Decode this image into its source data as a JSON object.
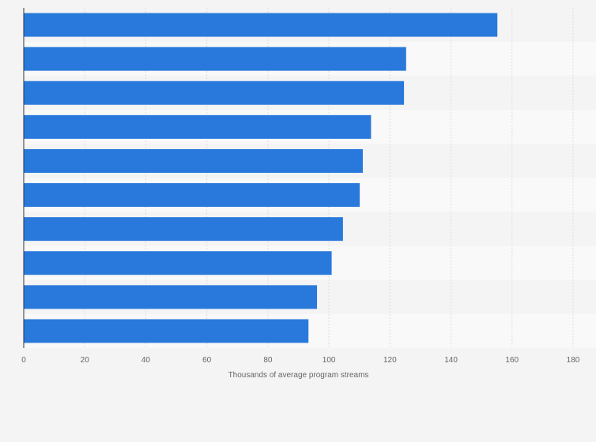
{
  "chart_data": {
    "type": "bar",
    "orientation": "horizontal",
    "title": "",
    "xlabel": "Thousands of average program streams",
    "ylabel": "",
    "categories": [
      "",
      "",
      "",
      "",
      "",
      "",
      "",
      "",
      "",
      ""
    ],
    "values": [
      155.2,
      125.3,
      124.6,
      113.8,
      111.1,
      110.1,
      104.6,
      100.9,
      96.1,
      93.3
    ],
    "xlim": [
      0,
      180
    ],
    "xticks": [
      0,
      20,
      40,
      60,
      80,
      100,
      120,
      140,
      160,
      180
    ],
    "xtick_labels": [
      "0",
      "20",
      "40",
      "60",
      "80",
      "100",
      "120",
      "140",
      "160",
      "180"
    ],
    "grid": "vertical",
    "legend": "none",
    "colors": {
      "bar": "#2979dc",
      "background": "#f4f4f4",
      "band_light": "#f9f9f9",
      "band_dark": "#f4f4f4",
      "grid": "#dddddd",
      "axis": "#333333"
    }
  }
}
